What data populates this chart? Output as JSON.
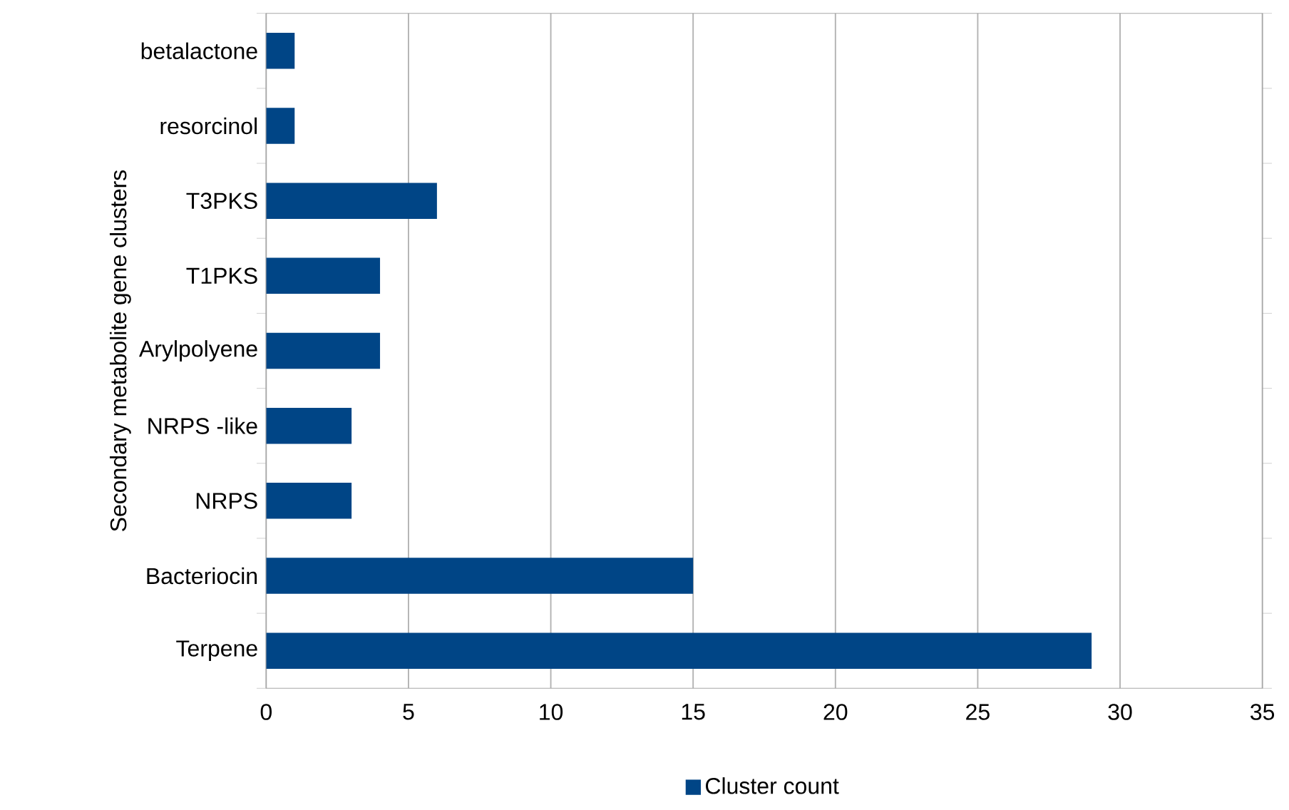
{
  "chart_data": {
    "type": "bar",
    "orientation": "horizontal",
    "ylabel": "Secondary metabolite gene clusters",
    "categories": [
      "betalactone",
      "resorcinol",
      "T3PKS",
      "T1PKS",
      "Arylpolyene",
      "NRPS -like",
      "NRPS",
      "Bacteriocin",
      "Terpene"
    ],
    "series": [
      {
        "name": "Cluster count",
        "color": "#004586",
        "values": [
          1,
          1,
          6,
          4,
          4,
          3,
          3,
          15,
          29
        ]
      }
    ],
    "xlim": [
      0,
      35
    ],
    "xticks": [
      0,
      5,
      10,
      15,
      20,
      25,
      30,
      35
    ],
    "grid": "x",
    "legend": "bottom"
  }
}
